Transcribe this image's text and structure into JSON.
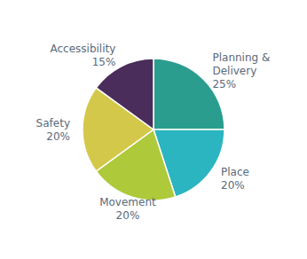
{
  "chart_data": {
    "type": "pie",
    "categories": [
      "Planning & Delivery",
      "Place",
      "Movement",
      "Safety",
      "Accessibility"
    ],
    "values": [
      25,
      20,
      20,
      20,
      15
    ],
    "value_labels": [
      "25%",
      "20%",
      "20%",
      "20%",
      "15%"
    ],
    "colors": [
      "#2a9d8f",
      "#2ab5c0",
      "#aec93a",
      "#d4c84a",
      "#4a2d5a"
    ]
  }
}
